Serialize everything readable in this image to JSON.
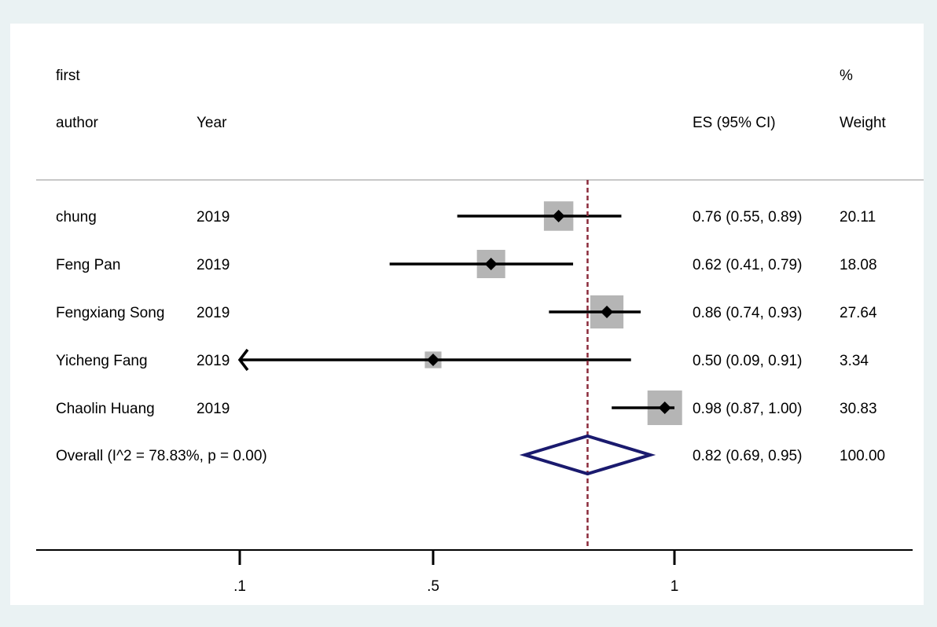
{
  "chart_data": {
    "type": "forest",
    "columns": {
      "author_line1": "first",
      "author_line2": "author",
      "year": "Year",
      "es": "ES (95% CI)",
      "weight_line1": "%",
      "weight_line2": "Weight"
    },
    "studies": [
      {
        "author": "chung",
        "year": "2019",
        "es": 0.76,
        "lo": 0.55,
        "hi": 0.89,
        "es_label": "0.76 (0.55, 0.89)",
        "weight": 20.11,
        "weight_label": "20.11"
      },
      {
        "author": "Feng Pan",
        "year": "2019",
        "es": 0.62,
        "lo": 0.41,
        "hi": 0.79,
        "es_label": "0.62 (0.41, 0.79)",
        "weight": 18.08,
        "weight_label": "18.08"
      },
      {
        "author": "Fengxiang Song",
        "year": "2019",
        "es": 0.86,
        "lo": 0.74,
        "hi": 0.93,
        "es_label": "0.86 (0.74, 0.93)",
        "weight": 27.64,
        "weight_label": "27.64"
      },
      {
        "author": "Yicheng Fang",
        "year": "2019",
        "es": 0.5,
        "lo": 0.09,
        "hi": 0.91,
        "es_label": "0.50 (0.09, 0.91)",
        "weight": 3.34,
        "weight_label": "3.34"
      },
      {
        "author": "Chaolin Huang",
        "year": "2019",
        "es": 0.98,
        "lo": 0.87,
        "hi": 1.0,
        "es_label": "0.98 (0.87, 1.00)",
        "weight": 30.83,
        "weight_label": "30.83"
      }
    ],
    "overall": {
      "label": "Overall  (I^2 = 78.83%, p = 0.00)",
      "es": 0.82,
      "lo": 0.69,
      "hi": 0.95,
      "es_label": "0.82 (0.69, 0.95)",
      "weight_label": "100.00"
    },
    "x_ticks": [
      {
        "value": 0.1,
        "label": ".1"
      },
      {
        "value": 0.5,
        "label": ".5"
      },
      {
        "value": 1.0,
        "label": "1"
      }
    ],
    "xlim_display": [
      0.1,
      1.0
    ],
    "reference_line": 0.82,
    "colors": {
      "background": "#eaf2f3",
      "plot": "#ffffff",
      "ci_line": "#000000",
      "weight_box": "#b5b5b5",
      "diamond": "#1a1a6e",
      "reference_line": "#8b2b3b",
      "header_rule": "#c8c8c8"
    }
  }
}
